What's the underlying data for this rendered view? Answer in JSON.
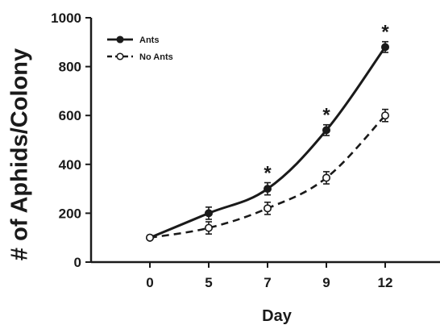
{
  "chart_data": {
    "type": "line",
    "title": "",
    "xlabel": "Day",
    "ylabel": "# of Aphids/Colony",
    "categories": [
      "0",
      "5",
      "7",
      "9",
      "12"
    ],
    "ylim": [
      0,
      1000
    ],
    "yticks": [
      0,
      200,
      400,
      600,
      800,
      1000
    ],
    "grid": false,
    "legend_position": "top-left",
    "series": [
      {
        "name": "Ants",
        "values": [
          100,
          200,
          300,
          540,
          880
        ],
        "errors": [
          8,
          25,
          25,
          22,
          22
        ],
        "marker": "filled-circle",
        "line_style": "solid",
        "color": "#1a1a1a"
      },
      {
        "name": "No Ants",
        "values": [
          100,
          140,
          220,
          345,
          600
        ],
        "errors": [
          8,
          25,
          25,
          25,
          25
        ],
        "marker": "open-circle",
        "line_style": "dashed",
        "color": "#1a1a1a"
      }
    ],
    "annotations": [
      {
        "category": "7",
        "text": "*"
      },
      {
        "category": "9",
        "text": "*"
      },
      {
        "category": "12",
        "text": "*"
      }
    ]
  }
}
